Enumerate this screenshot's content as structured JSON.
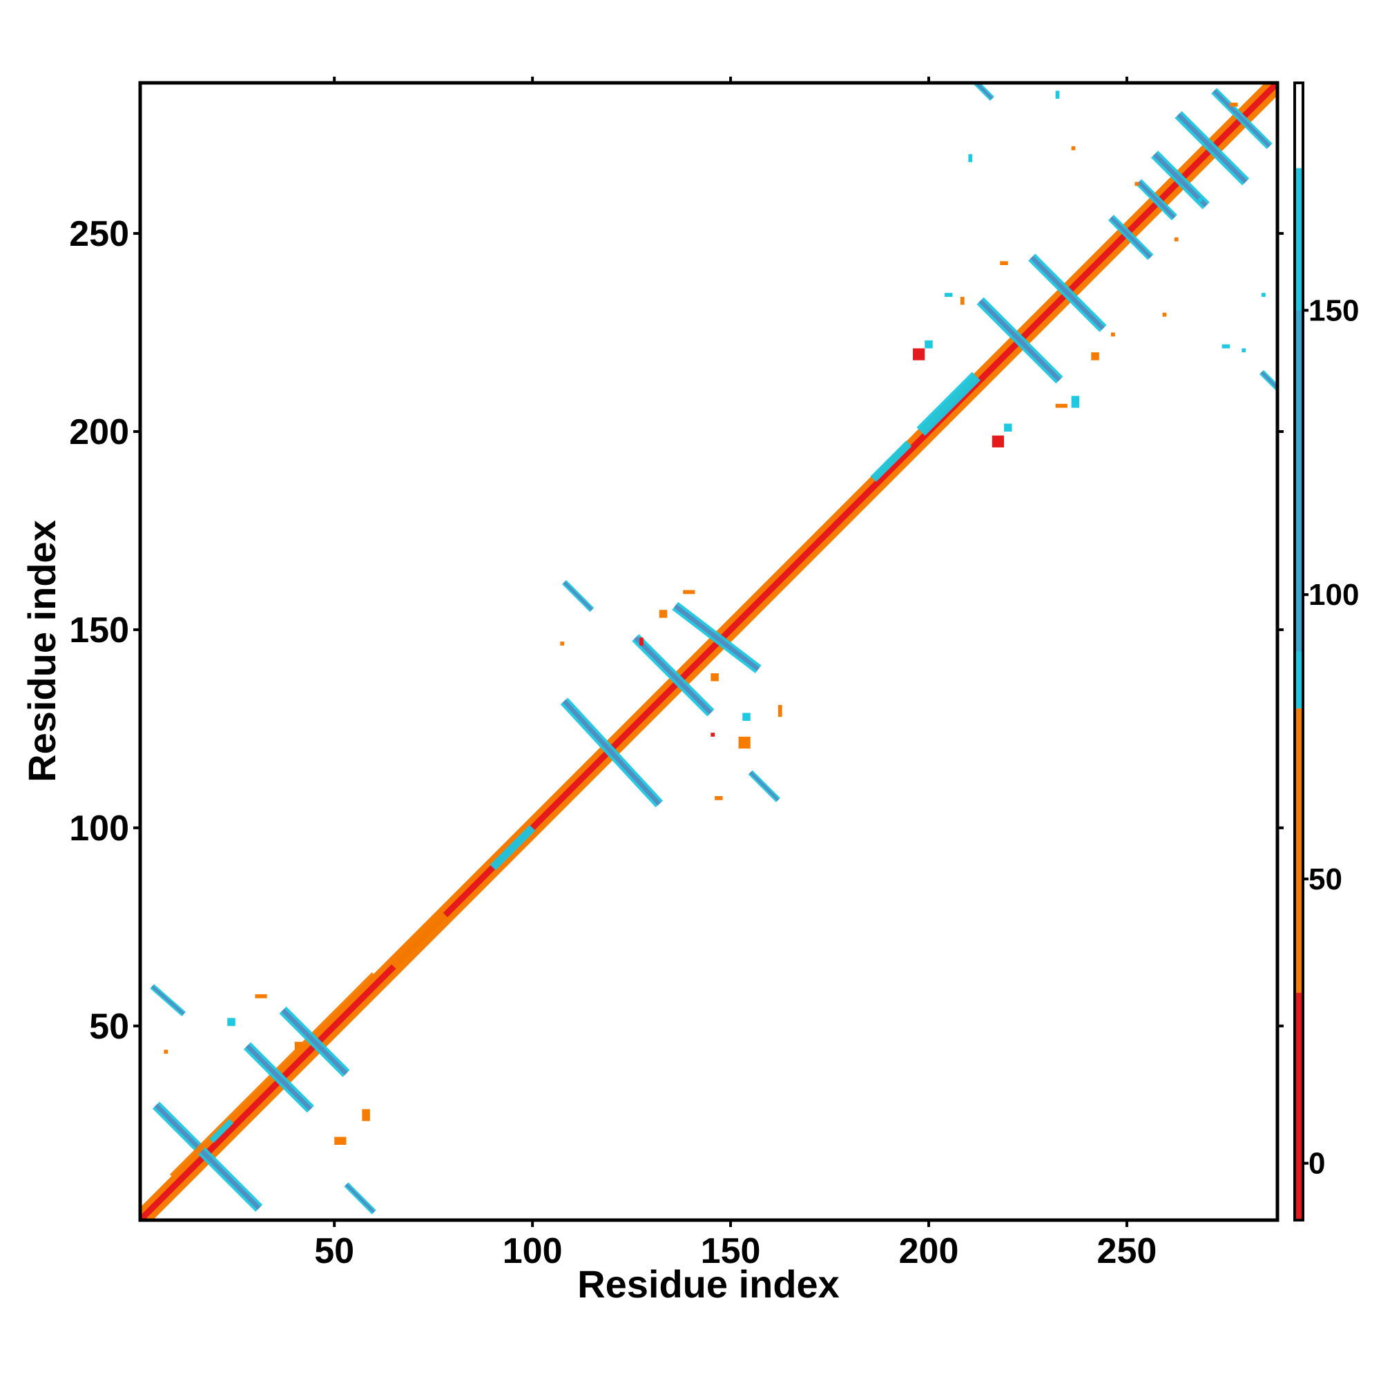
{
  "chart_data": {
    "type": "heatmap",
    "xlabel": "Residue index",
    "ylabel": "Residue index",
    "xlim": [
      1,
      288
    ],
    "ylim": [
      1,
      288
    ],
    "xticks": [
      50,
      100,
      150,
      200,
      250
    ],
    "yticks": [
      50,
      100,
      150,
      200,
      250
    ],
    "colorbar": {
      "range": [
        -10,
        190
      ],
      "ticks": [
        0,
        50,
        100,
        150
      ],
      "bands": [
        {
          "from": -10,
          "to": 30,
          "color": "#e41a1c"
        },
        {
          "from": 30,
          "to": 80,
          "color": "#f57c00"
        },
        {
          "from": 80,
          "to": 175,
          "color": "#1ec8e0"
        },
        {
          "from": 175,
          "to": 190,
          "color": "#ffffff"
        }
      ]
    },
    "diagonal": {
      "from": 1,
      "to": 288,
      "value": 10
    },
    "segments": [
      {
        "p1": [
          5,
          30
        ],
        "p2": [
          31,
          4
        ],
        "width": 2.5,
        "value": 110
      },
      {
        "p1": [
          9,
          12
        ],
        "p2": [
          60,
          63
        ],
        "width": 1.5,
        "value": 60
      },
      {
        "p1": [
          28,
          45
        ],
        "p2": [
          44,
          29
        ],
        "width": 2.5,
        "value": 110
      },
      {
        "p1": [
          37,
          54
        ],
        "p2": [
          53,
          38
        ],
        "width": 2.5,
        "value": 110
      },
      {
        "p1": [
          19,
          21
        ],
        "p2": [
          24,
          26
        ],
        "width": 1.5,
        "value": 110
      },
      {
        "p1": [
          4,
          60
        ],
        "p2": [
          12,
          53
        ],
        "width": 1.5,
        "value": 120
      },
      {
        "p1": [
          53,
          10
        ],
        "p2": [
          60,
          3
        ],
        "width": 1.5,
        "value": 120
      },
      {
        "p1": [
          65,
          65
        ],
        "p2": [
          78,
          78
        ],
        "width": 3,
        "value": 60
      },
      {
        "p1": [
          90,
          90
        ],
        "p2": [
          100,
          100
        ],
        "width": 2,
        "value": 110
      },
      {
        "p1": [
          108,
          132
        ],
        "p2": [
          132,
          106
        ],
        "width": 2.5,
        "value": 110
      },
      {
        "p1": [
          126,
          148
        ],
        "p2": [
          145,
          129
        ],
        "width": 2.5,
        "value": 110
      },
      {
        "p1": [
          136,
          156
        ],
        "p2": [
          157,
          140
        ],
        "width": 2.5,
        "value": 110
      },
      {
        "p1": [
          108,
          162
        ],
        "p2": [
          115,
          155
        ],
        "width": 1.5,
        "value": 120
      },
      {
        "p1": [
          155,
          114
        ],
        "p2": [
          162,
          107
        ],
        "width": 1.5,
        "value": 120
      },
      {
        "p1": [
          186,
          188
        ],
        "p2": [
          195,
          197
        ],
        "width": 2,
        "value": 110
      },
      {
        "p1": [
          198,
          200
        ],
        "p2": [
          212,
          214
        ],
        "width": 3,
        "value": 110
      },
      {
        "p1": [
          213,
          233
        ],
        "p2": [
          233,
          213
        ],
        "width": 2.5,
        "value": 110
      },
      {
        "p1": [
          226,
          244
        ],
        "p2": [
          244,
          226
        ],
        "width": 2.5,
        "value": 110
      },
      {
        "p1": [
          246,
          254
        ],
        "p2": [
          256,
          244
        ],
        "width": 2,
        "value": 110
      },
      {
        "p1": [
          253,
          263
        ],
        "p2": [
          262,
          254
        ],
        "width": 2,
        "value": 110
      },
      {
        "p1": [
          257,
          270
        ],
        "p2": [
          270,
          257
        ],
        "width": 2.5,
        "value": 110
      },
      {
        "p1": [
          263,
          280
        ],
        "p2": [
          280,
          263
        ],
        "width": 2.5,
        "value": 110
      },
      {
        "p1": [
          272,
          286
        ],
        "p2": [
          286,
          272
        ],
        "width": 2,
        "value": 110
      },
      {
        "p1": [
          212,
          288
        ],
        "p2": [
          216,
          284
        ],
        "width": 1.5,
        "value": 140
      },
      {
        "p1": [
          284,
          215
        ],
        "p2": [
          288,
          211
        ],
        "width": 1.5,
        "value": 140
      }
    ],
    "spots": [
      {
        "x": 57,
        "y": 26,
        "w": 2,
        "h": 3,
        "value": 40
      },
      {
        "x": 50,
        "y": 20,
        "w": 3,
        "h": 2,
        "value": 40
      },
      {
        "x": 23,
        "y": 50,
        "w": 2,
        "h": 2,
        "value": 110
      },
      {
        "x": 30,
        "y": 57,
        "w": 3,
        "h": 1,
        "value": 40
      },
      {
        "x": 40,
        "y": 44,
        "w": 2,
        "h": 2,
        "value": 30
      },
      {
        "x": 7,
        "y": 43,
        "w": 1,
        "h": 1,
        "value": 60
      },
      {
        "x": 132,
        "y": 153,
        "w": 2,
        "h": 2,
        "value": 50
      },
      {
        "x": 138,
        "y": 159,
        "w": 3,
        "h": 1,
        "value": 50
      },
      {
        "x": 127,
        "y": 146,
        "w": 1,
        "h": 2,
        "value": 20
      },
      {
        "x": 107,
        "y": 146,
        "w": 1,
        "h": 1,
        "value": 60
      },
      {
        "x": 145,
        "y": 137,
        "w": 2,
        "h": 2,
        "value": 40
      },
      {
        "x": 152,
        "y": 120,
        "w": 3,
        "h": 3,
        "value": 60
      },
      {
        "x": 145,
        "y": 123,
        "w": 1,
        "h": 1,
        "value": 20
      },
      {
        "x": 153,
        "y": 127,
        "w": 2,
        "h": 2,
        "value": 110
      },
      {
        "x": 162,
        "y": 128,
        "w": 1,
        "h": 3,
        "value": 60
      },
      {
        "x": 146,
        "y": 107,
        "w": 2,
        "h": 1,
        "value": 60
      },
      {
        "x": 216,
        "y": 196,
        "w": 3,
        "h": 3,
        "value": 20
      },
      {
        "x": 219,
        "y": 200,
        "w": 2,
        "h": 2,
        "value": 110
      },
      {
        "x": 196,
        "y": 218,
        "w": 3,
        "h": 3,
        "value": 20
      },
      {
        "x": 199,
        "y": 221,
        "w": 2,
        "h": 2,
        "value": 110
      },
      {
        "x": 232,
        "y": 206,
        "w": 3,
        "h": 1,
        "value": 40
      },
      {
        "x": 236,
        "y": 206,
        "w": 2,
        "h": 3,
        "value": 110
      },
      {
        "x": 208,
        "y": 232,
        "w": 1,
        "h": 2,
        "value": 40
      },
      {
        "x": 204,
        "y": 234,
        "w": 2,
        "h": 1,
        "value": 110
      },
      {
        "x": 241,
        "y": 218,
        "w": 2,
        "h": 2,
        "value": 40
      },
      {
        "x": 218,
        "y": 242,
        "w": 2,
        "h": 1,
        "value": 40
      },
      {
        "x": 210,
        "y": 268,
        "w": 1,
        "h": 2,
        "value": 110
      },
      {
        "x": 268,
        "y": 258,
        "w": 1,
        "h": 1,
        "value": 110
      },
      {
        "x": 246,
        "y": 224,
        "w": 1,
        "h": 1,
        "value": 60
      },
      {
        "x": 262,
        "y": 248,
        "w": 1,
        "h": 1,
        "value": 60
      },
      {
        "x": 252,
        "y": 262,
        "w": 1,
        "h": 1,
        "value": 60
      },
      {
        "x": 274,
        "y": 221,
        "w": 2,
        "h": 1,
        "value": 110
      },
      {
        "x": 279,
        "y": 220,
        "w": 1,
        "h": 1,
        "value": 110
      },
      {
        "x": 284,
        "y": 234,
        "w": 1,
        "h": 1,
        "value": 110
      },
      {
        "x": 259,
        "y": 229,
        "w": 1,
        "h": 1,
        "value": 40
      },
      {
        "x": 232,
        "y": 284,
        "w": 1,
        "h": 2,
        "value": 110
      },
      {
        "x": 276,
        "y": 282,
        "w": 2,
        "h": 1,
        "value": 40
      },
      {
        "x": 236,
        "y": 271,
        "w": 1,
        "h": 1,
        "value": 60
      }
    ]
  }
}
